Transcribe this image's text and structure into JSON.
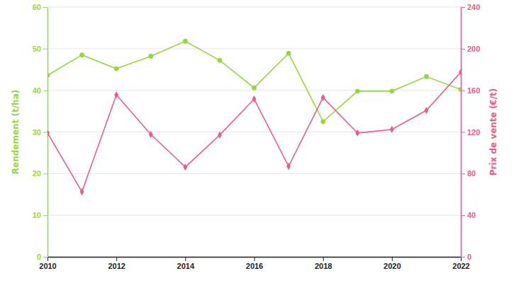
{
  "chart_data": {
    "type": "line",
    "x": [
      2010,
      2011,
      2012,
      2013,
      2014,
      2015,
      2016,
      2017,
      2018,
      2019,
      2020,
      2021,
      2022
    ],
    "xlim": [
      2010,
      2022
    ],
    "xticks": [
      2010,
      2012,
      2014,
      2016,
      2018,
      2020,
      2022
    ],
    "y_label": "Rendement (t/ha)",
    "y2_label": "Prix de vente (€/t)",
    "ylim": [
      0,
      60
    ],
    "yticks": [
      0,
      10,
      20,
      30,
      40,
      50,
      60
    ],
    "y2lim": [
      0,
      240
    ],
    "y2ticks": [
      0,
      40,
      80,
      120,
      160,
      200,
      240
    ],
    "grid": true,
    "series": [
      {
        "name": "Rendement",
        "color": "#97d643",
        "marker": "circle",
        "values": [
          43.6,
          48.5,
          45.2,
          48.2,
          51.8,
          47.2,
          40.6,
          48.9,
          32.5,
          39.8,
          39.8,
          43.3,
          40.2
        ]
      },
      {
        "name": "Prix de vente",
        "color": "#e85d84",
        "marker": "diamond",
        "axis": "y2",
        "values": [
          119,
          62.5,
          155.7,
          117.6,
          86.3,
          117,
          151.6,
          87,
          153,
          119,
          122.4,
          140.7,
          177.4
        ]
      }
    ]
  }
}
